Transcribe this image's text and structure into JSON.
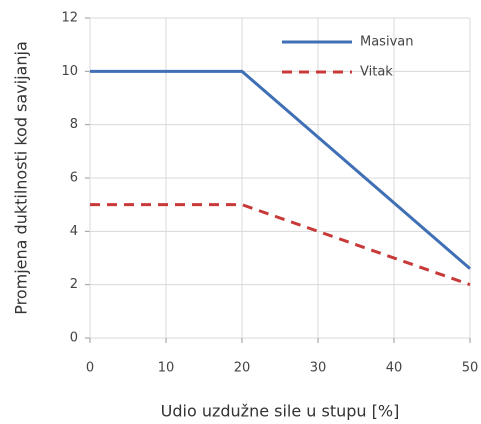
{
  "chart_data": {
    "type": "line",
    "xlabel": "Udio uzdužne sile u stupu [%]",
    "ylabel": "Promjena duktilnosti kod savijanja",
    "x": [
      0,
      20,
      50
    ],
    "series": [
      {
        "name": "Masivan",
        "color": "#3f6fb5",
        "dash": "solid",
        "values": [
          10,
          10,
          2.6
        ]
      },
      {
        "name": "Vitak",
        "color": "#c83a3a",
        "dash": "dashed",
        "values": [
          5,
          5,
          2
        ]
      }
    ],
    "xlim": [
      0,
      50
    ],
    "xticks": [
      0,
      10,
      20,
      30,
      40,
      50
    ],
    "ylim": [
      0,
      12
    ],
    "yticks": [
      0,
      2,
      4,
      6,
      8,
      10,
      12
    ],
    "grid": true,
    "legend": "upper right"
  }
}
